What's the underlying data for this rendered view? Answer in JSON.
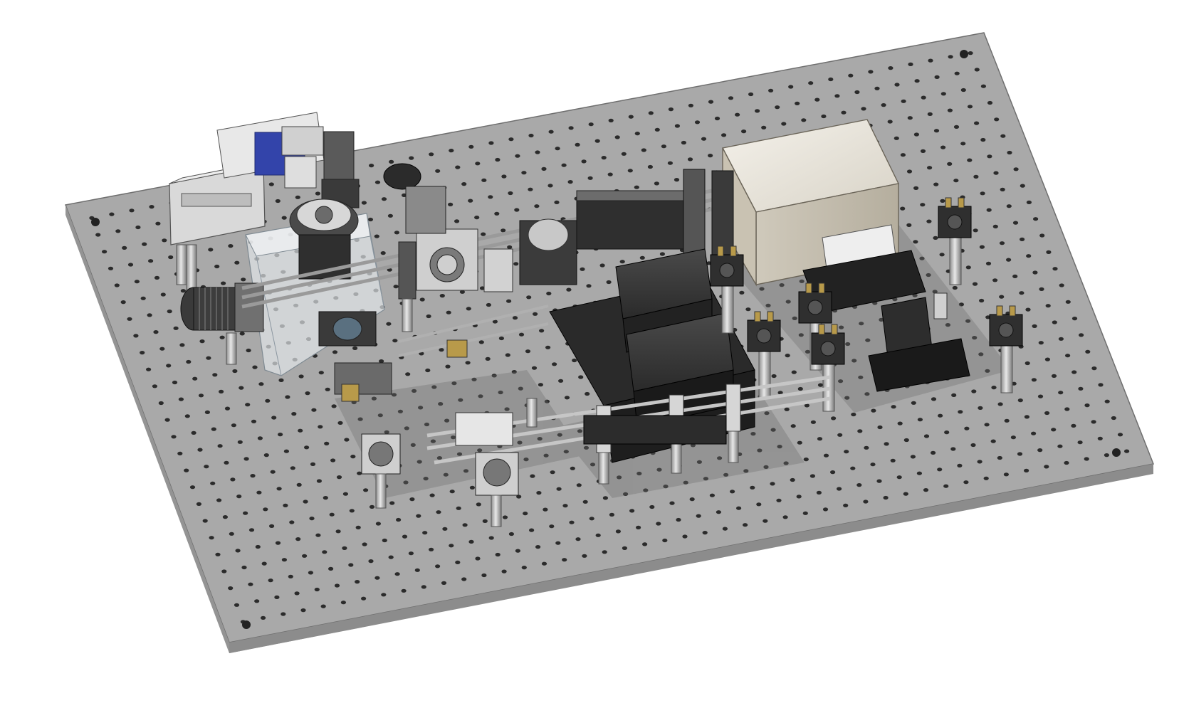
{
  "scene": {
    "description_visible_text": "",
    "colors": {
      "background": "#ffffff",
      "table_top": "#a9a9a9",
      "table_edge": "#7a7a7a",
      "holes": "#2b2b2b",
      "rail_metal": "#c8c8c8",
      "black_housing": "#2e2e2e",
      "beige_enclosure": "#e6e2d8",
      "blue_stage": "#3344aa",
      "brass_screw": "#b89a4a"
    },
    "component_names": [
      "optical-breadboard",
      "translation-stage",
      "objective-turret",
      "transparent-enclosure",
      "threaded-lens-tube",
      "cage-system",
      "camera",
      "laser-enclosure",
      "black-module-top",
      "black-module-bottom",
      "kinematic-mounts",
      "post-holders",
      "white-small-box",
      "rotation-mount"
    ]
  }
}
